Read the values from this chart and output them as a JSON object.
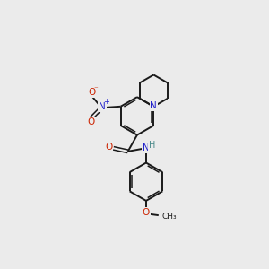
{
  "background_color": "#ebebeb",
  "bond_color": "#1a1a1a",
  "atom_colors": {
    "N": "#2222cc",
    "O": "#cc2200",
    "C": "#1a1a1a",
    "H": "#4a8a8a"
  },
  "figsize": [
    3.0,
    3.0
  ],
  "dpi": 100,
  "lw": 1.4,
  "lw2": 1.1,
  "r_hex": 0.72,
  "pip_r": 0.6,
  "font_size": 7.5
}
